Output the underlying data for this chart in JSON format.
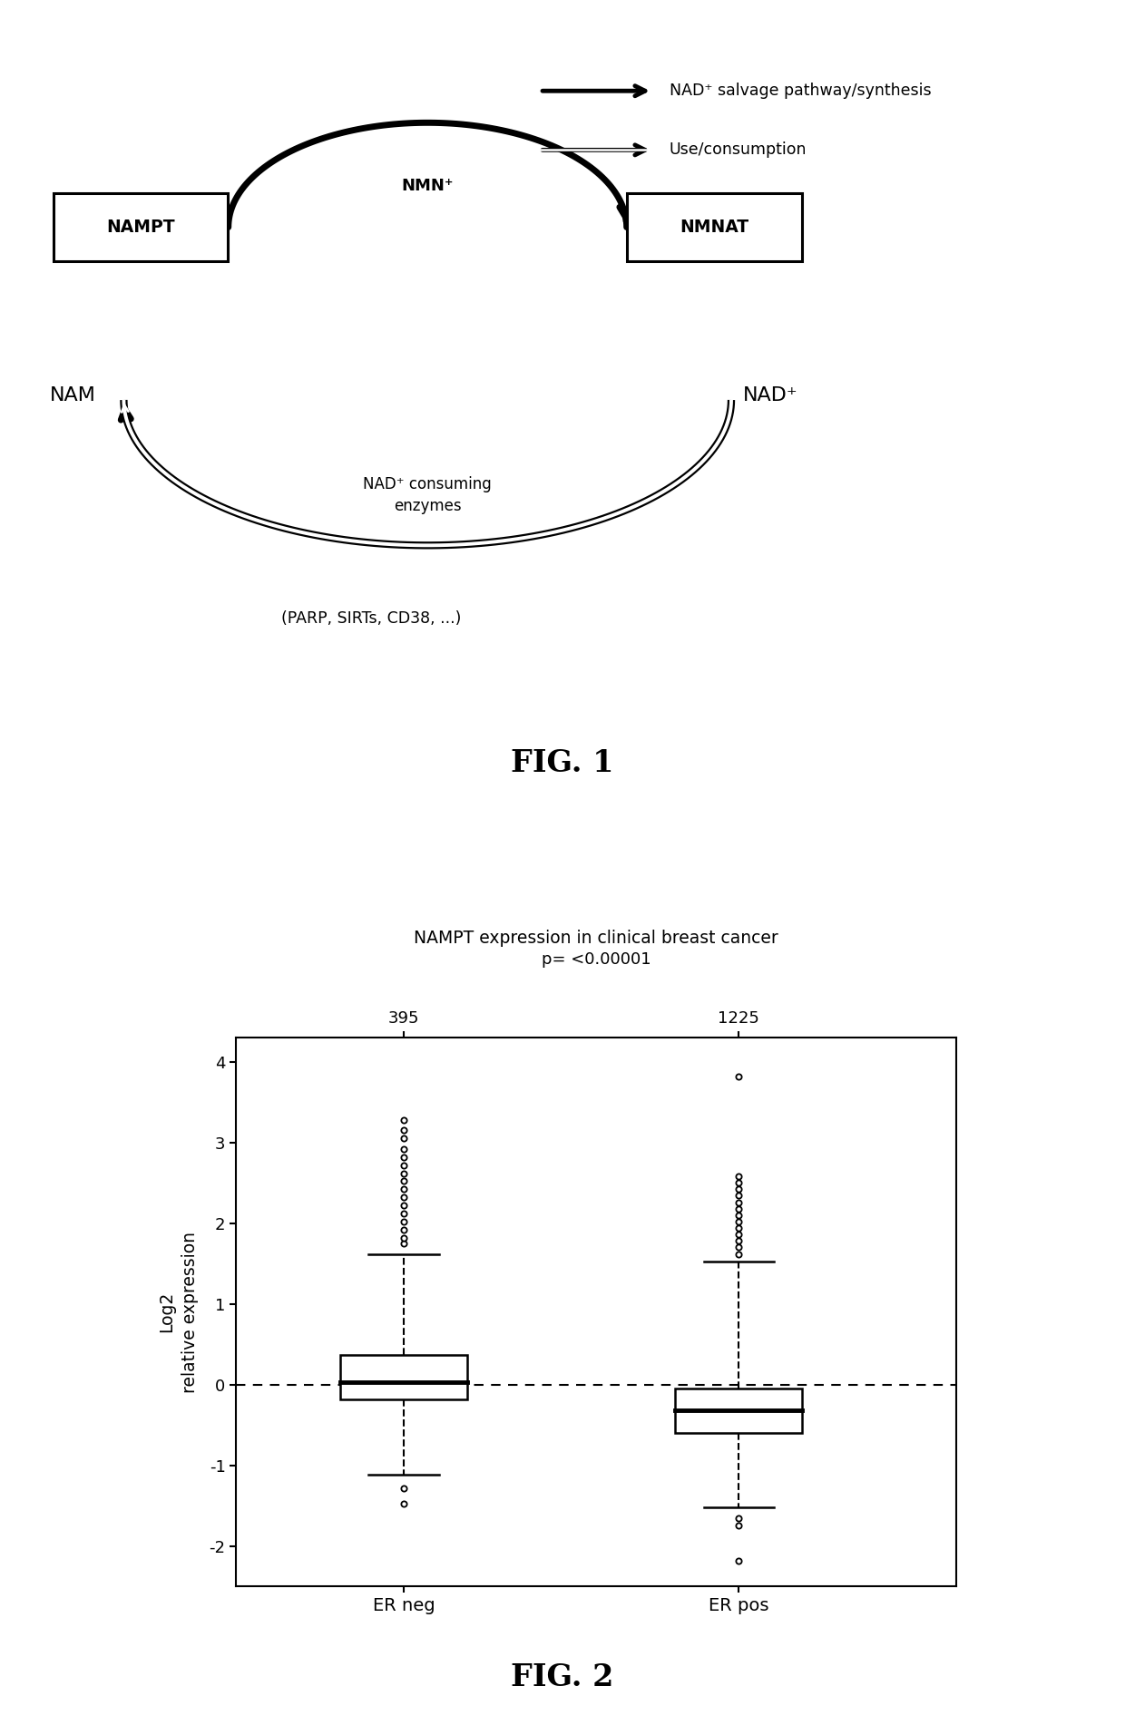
{
  "fig1": {
    "legend_arrow1_label": "NAD⁺ salvage pathway/synthesis",
    "legend_arrow2_label": "Use/consumption",
    "nampt_box": "NAMPT",
    "nmnat_box": "NMNAT",
    "nam_label": "NAM",
    "nmn_label": "NMN⁺",
    "nad_label": "NAD⁺",
    "consuming_label": "NAD⁺ consuming\nenzymes",
    "parp_label": "(PARP, SIRTs, CD38, ...)",
    "fig_label": "FIG. 1"
  },
  "fig2": {
    "title": "NAMPT expression in clinical breast cancer",
    "pvalue": "p= <0.00001",
    "categories": [
      "ER neg",
      "ER pos"
    ],
    "sample_counts": [
      "395",
      "1225"
    ],
    "er_neg": {
      "median": 0.03,
      "q1": -0.18,
      "q3": 0.37,
      "whisker_low": -1.12,
      "whisker_high": 1.62,
      "outliers_high": [
        1.75,
        1.82,
        1.92,
        2.02,
        2.12,
        2.22,
        2.32,
        2.42,
        2.52,
        2.62,
        2.72,
        2.82,
        2.92,
        3.05,
        3.15,
        3.28
      ],
      "outliers_low": [
        -1.28,
        -1.48
      ]
    },
    "er_pos": {
      "median": -0.32,
      "q1": -0.6,
      "q3": -0.05,
      "whisker_low": -1.52,
      "whisker_high": 1.52,
      "outliers_high": [
        1.62,
        1.7,
        1.78,
        1.86,
        1.94,
        2.02,
        2.1,
        2.18,
        2.26,
        2.34,
        2.42,
        2.5,
        2.58,
        3.82
      ],
      "outliers_low": [
        -1.65,
        -1.75,
        -2.18
      ]
    },
    "ylim": [
      -2.5,
      4.3
    ],
    "yticks": [
      -2,
      -1,
      0,
      1,
      2,
      3,
      4
    ],
    "ylabel_line1": "Log2",
    "ylabel_line2": "relative expression",
    "fig_label": "FIG. 2"
  },
  "bg_color": "#ffffff",
  "text_color": "#000000"
}
